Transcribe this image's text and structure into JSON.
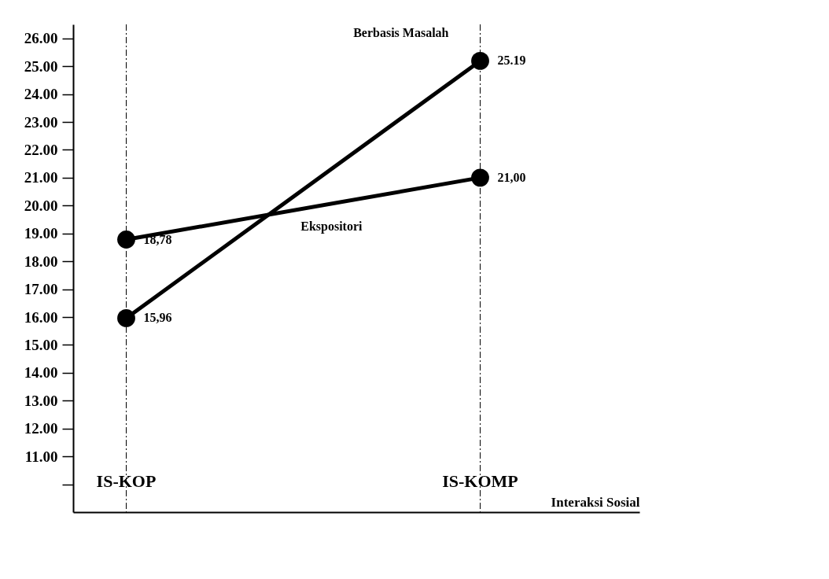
{
  "chart_data": {
    "type": "line",
    "xlabel": "Interaksi Sosial",
    "categories": [
      "IS-KOP",
      "IS-KOMP"
    ],
    "series": [
      {
        "name": "Berbasis Masalah",
        "color": "#000000",
        "values": [
          15.96,
          25.19
        ],
        "value_labels": [
          "15,96",
          "25.19"
        ]
      },
      {
        "name": "Ekspositori",
        "color": "#000000",
        "values": [
          18.78,
          21.0
        ],
        "value_labels": [
          "18,78",
          "21,00"
        ]
      }
    ],
    "ylim": [
      9,
      26.5
    ],
    "yticks": [
      {
        "value": 10,
        "label": null
      },
      {
        "value": 11,
        "label": "11.00"
      },
      {
        "value": 12,
        "label": "12.00"
      },
      {
        "value": 13,
        "label": "13.00"
      },
      {
        "value": 14,
        "label": "14.00"
      },
      {
        "value": 15,
        "label": "15.00"
      },
      {
        "value": 16,
        "label": "16.00"
      },
      {
        "value": 17,
        "label": "17.00"
      },
      {
        "value": 18,
        "label": "18.00"
      },
      {
        "value": 19,
        "label": "19.00"
      },
      {
        "value": 20,
        "label": "20.00"
      },
      {
        "value": 21,
        "label": "21.00"
      },
      {
        "value": 22,
        "label": "22.00"
      },
      {
        "value": 23,
        "label": "23.00"
      },
      {
        "value": 24,
        "label": "24.00"
      },
      {
        "value": 25,
        "label": "25.00"
      },
      {
        "value": 26,
        "label": "26.00"
      }
    ],
    "grid": "x",
    "marker": "circle",
    "line_style": "solid",
    "legend": false
  }
}
